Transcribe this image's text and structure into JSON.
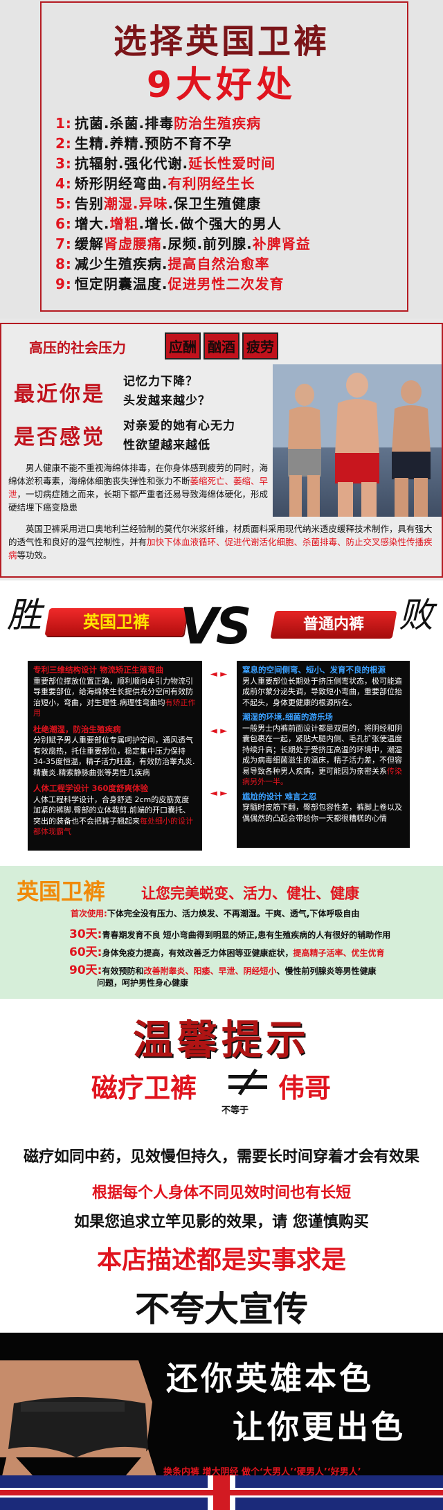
{
  "s1": {
    "title1": "选择英国卫裤",
    "title2": "9大好处",
    "benefits": [
      {
        "num": "1:",
        "black": "抗菌.杀菌.排毒",
        "red": "防治生殖疾病"
      },
      {
        "num": "2:",
        "black": "生精.养精.预防不育不孕",
        "red": ""
      },
      {
        "num": "3:",
        "black": "抗辐射.强化代谢.",
        "red": "延长性爱时间"
      },
      {
        "num": "4:",
        "black": "矫形阴经弯曲.",
        "red": "有利阴经生长"
      },
      {
        "num": "5:",
        "black": "告别",
        "red": "潮湿.异味",
        "tail": ".保卫生殖健康"
      },
      {
        "num": "6:",
        "black": "增大.",
        "red": "增粗",
        "tail": ".增长.做个强大的男人"
      },
      {
        "num": "7:",
        "black": "缓解",
        "red": "肾虚腰痛",
        "tail": ".尿频.前列腺.",
        "red2": "补脾肾益"
      },
      {
        "num": "8:",
        "black": "减少生殖疾病.",
        "red": "提高自然治愈率"
      },
      {
        "num": "9:",
        "black": "恒定阴囊温度.",
        "red": "促进男性二次发育"
      }
    ]
  },
  "s2": {
    "heading": "高压的社会压力",
    "tags": [
      "应酬",
      "酗酒",
      "疲劳"
    ],
    "big1": "最近你是",
    "big2": "是否感觉",
    "q1": "记忆力下降？",
    "q2": "头发越来越少？",
    "q3": "对亲爱的她有心无力",
    "q4": "性欲望越来越低",
    "para1_a": "男人健康不能不重视海绵体排毒，在你身体感到疲劳的同时，海绵体淤积毒素，海绵体细胞丧失弹性和张力不断",
    "para1_red": "萎缩死亡、萎缩、早泄",
    "para1_b": "，一切病症随之而来，长期下都严重者还易导致海绵体硬化，形成硬结埋下癌变隐患",
    "para2_a": "英国卫裤采用进口奥地利兰经验制的莫代尔米浆纤维，材质面料采用现代纳米透皮缓释技术制作，具有强大的透气性和良好的湿气控制性，并有",
    "para2_red": "加快下体血液循环、促进代谢活化细胞、杀菌排毒、防止交叉感染性传播疾病",
    "para2_b": "等功效。"
  },
  "s3": {
    "win": "胜",
    "lose": "败",
    "left_banner": "英国卫裤",
    "vs": "VS",
    "right_banner": "普通内裤",
    "left": [
      {
        "head": "专利三维结构设计  物流矫正生殖弯曲",
        "body": "重要部位撑放位置正确，顺利顺向牟引力物流引导重要部位，给海绵体生长提供充分空间有效防治短小，弯曲，对生理性.病理性弯曲均",
        "red": "有矫正作用"
      },
      {
        "head": "杜绝潮湿，防治生殖疾病",
        "body": "分别赋予男人重要部位专属呵护空间，通风透气有效扇热，托住重要部位，稳定集中压力保持34-35度恒温，精子活力旺盛，有效防治睾丸炎.精囊炎.精索静脉曲张等男性几疾病",
        "red": ""
      },
      {
        "head": "人体工程学设计    360度舒爽体验",
        "body": "人体工程科学设计，合身舒适 2cm的皮筋宽度加紧的裤脚.臀部的立体裁剪.前端的开口囊托、突出的装备也不会把裤子翘起来",
        "red": "每处细小的设计都体现霸气"
      }
    ],
    "right": [
      {
        "head": "窒息的空间侧弯、短小、发育不良的根源",
        "body": "男人重要部位长期处于挤压侧弯状态，极可能造成前尔蒙分泌失调，导致短小弯曲，重要部位抬不起头，身体更健康的根源所在。",
        "red": ""
      },
      {
        "head": "潮湿的环境.细菌的游乐场",
        "body": "一般男士内裤前面设计都是双层的，将阴经和阴囊包裹在一起，紧贴大腿内侧、毛孔扩张使温度持续升高；长期处于受挤压高温的环境中，潮湿成为病毒细菌滋生的温床，精子活力差，不但容易导致各种男人疾病，更可能因为亲密关系",
        "red": "传染病另外一半。"
      },
      {
        "head": "尴尬的设计     难言之忍",
        "body": "穿髓时皮筋下翻，臀部包容性差，裤脚上卷以及偶偶然的凸起会带给你一天都很糟糕的心情",
        "red": ""
      }
    ],
    "arrow": "◄  ►"
  },
  "s4": {
    "title": "英国卫裤",
    "subtitle": "让您完美蜕变、活力、健壮、健康",
    "first_label": "首次使用:",
    "first_text": "下体完全没有压力、活力焕发、不再潮湿。干爽、透气,下体呼吸自由",
    "d30_label": "30天:",
    "d30_text": "青春期发育不良 短小弯曲得到明显的矫正,患有生殖疾病的人有很好的辅助作用",
    "d60_label": "60天:",
    "d60_text": "身体免疫力提高，有效改善乏力体困等亚健康症状，",
    "d60_red": "提高精子活率、优生优育",
    "d90_label": "90天:",
    "d90_text": "有效预防和",
    "d90_red": "改善附睾炎、阳痿、早泄、阴经短小",
    "d90_tail": "、慢性前列腺炎等男性健康",
    "d90_line2": "问题，呵护男性身心健康"
  },
  "s5": {
    "title": "温馨提示",
    "left": "磁疗卫裤",
    "right": "伟哥",
    "neq": "不等于",
    "l1": "磁疗如同中药，见效慢但持久，需要长时间穿着才会有效果",
    "l2": "根据每个人身体不同见效时间也有长短",
    "l3": "如果您追求立竿见影的效果，请 您谨慎购买",
    "l4": "本店描述都是实事求是",
    "l5": "不夸大宣传"
  },
  "s6": {
    "h1": "还你英雄本色",
    "h2": "让你更出色",
    "slogan": "换条内裤  增大阴经 做个‘大男人’‘硬男人’‘好男人’"
  }
}
